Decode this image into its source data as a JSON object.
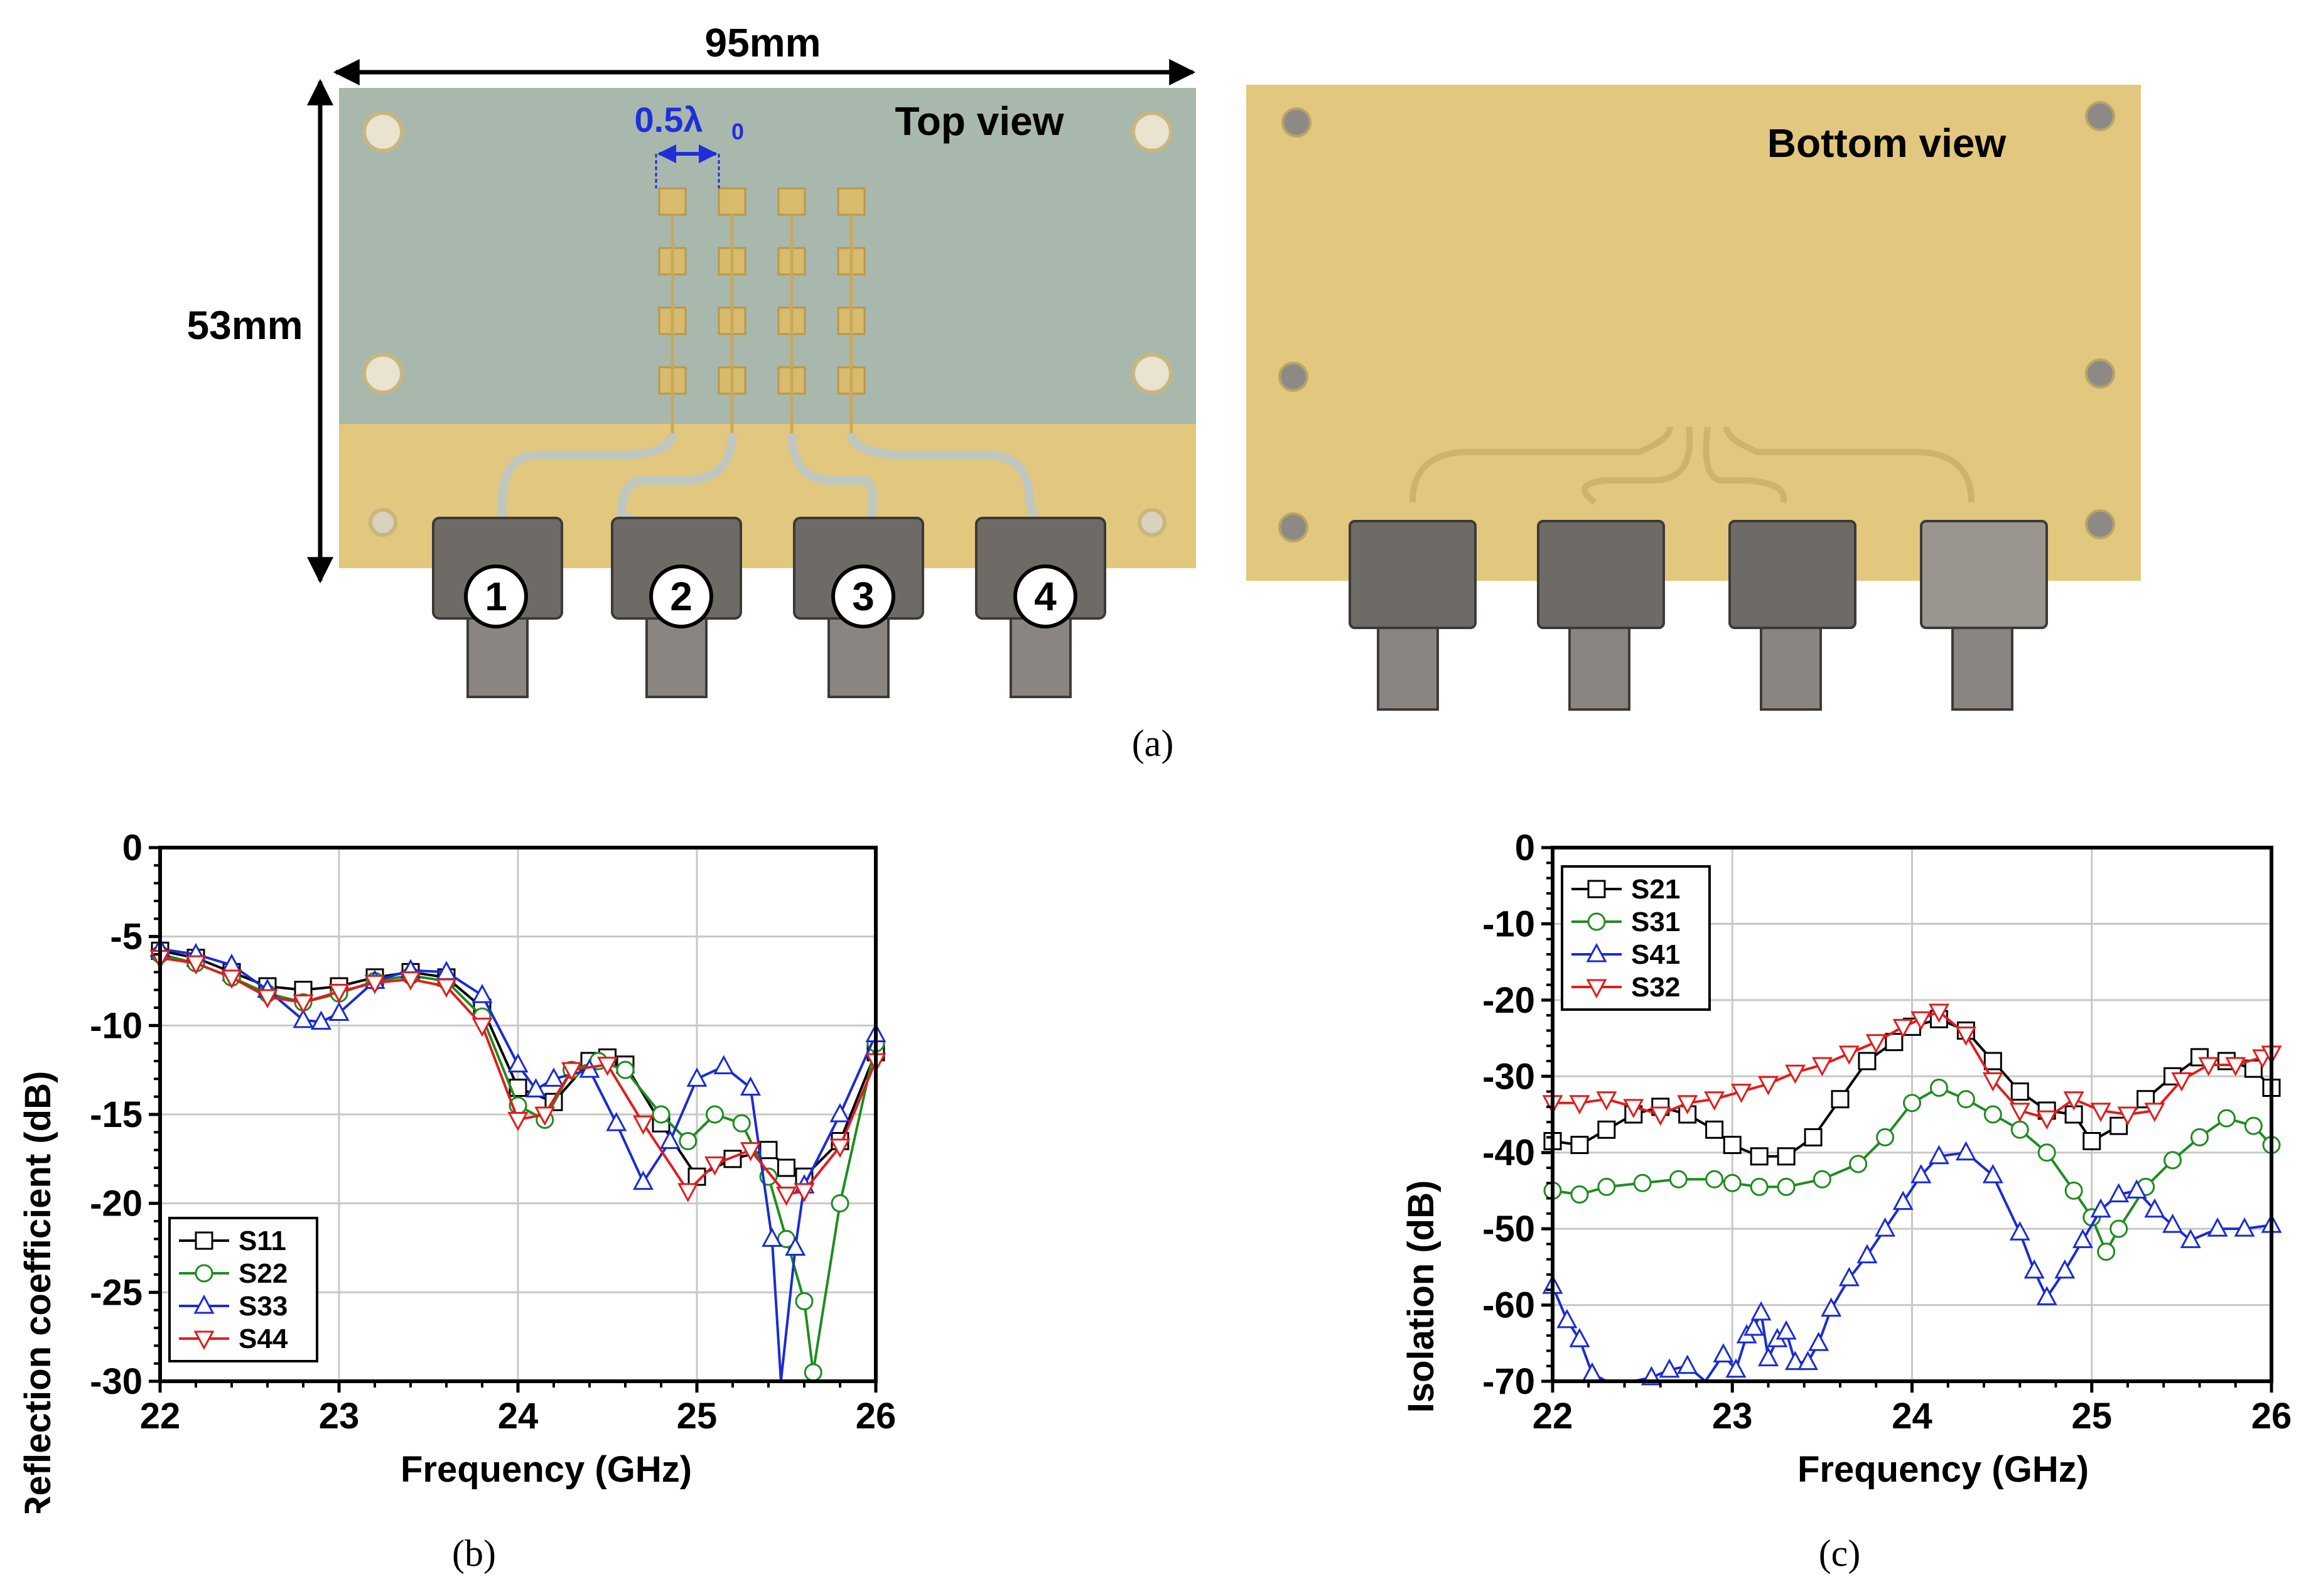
{
  "photo": {
    "width_label": "95mm",
    "height_label": "53mm",
    "spacing_label": "0.5λ",
    "spacing_subscript": "0",
    "top_view_label": "Top view",
    "bottom_view_label": "Bottom view",
    "ports": [
      "1",
      "2",
      "3",
      "4"
    ],
    "colors": {
      "substrate": "#a9b8ad",
      "gold": "#e2c77e",
      "spacing": "#1f2fd8"
    }
  },
  "captions": {
    "a": "(a)",
    "b": "(b)",
    "c": "(c)"
  },
  "chart_data": [
    {
      "type": "line",
      "xlabel": "Frequency (GHz)",
      "ylabel": "Reflection coefficient (dB)",
      "xlim": [
        22,
        26
      ],
      "ylim": [
        -30,
        0
      ],
      "xticks": [
        22,
        23,
        24,
        25,
        26
      ],
      "yticks": [
        0,
        -5,
        -10,
        -15,
        -20,
        -25,
        -30
      ],
      "ytick_labels": [
        "0",
        "-5",
        "-10",
        "-15",
        "-20",
        "-25",
        "-30"
      ],
      "grid": true,
      "legend_position": "bottom-left",
      "series": [
        {
          "name": "S11",
          "color": "#000000",
          "marker": "square",
          "x": [
            22,
            22.2,
            22.4,
            22.6,
            22.8,
            23.0,
            23.2,
            23.4,
            23.6,
            23.8,
            24.0,
            24.2,
            24.4,
            24.5,
            24.6,
            24.8,
            25.0,
            25.2,
            25.4,
            25.5,
            25.6,
            25.8,
            26.0
          ],
          "y": [
            -5.8,
            -6.2,
            -7.0,
            -7.8,
            -8.0,
            -7.8,
            -7.3,
            -7.0,
            -7.3,
            -9.0,
            -13.5,
            -14.3,
            -12.0,
            -11.8,
            -12.2,
            -15.5,
            -18.5,
            -17.5,
            -17.0,
            -18.0,
            -18.5,
            -16.5,
            -11.5
          ]
        },
        {
          "name": "S22",
          "color": "#1e8c1e",
          "marker": "circle",
          "x": [
            22,
            22.2,
            22.4,
            22.6,
            22.8,
            23.0,
            23.2,
            23.4,
            23.6,
            23.8,
            24.0,
            24.15,
            24.3,
            24.45,
            24.6,
            24.8,
            24.95,
            25.1,
            25.25,
            25.4,
            25.5,
            25.6,
            25.65,
            25.8,
            26.0
          ],
          "y": [
            -6.0,
            -6.5,
            -7.3,
            -8.2,
            -8.7,
            -8.2,
            -7.5,
            -7.2,
            -7.5,
            -9.5,
            -14.5,
            -15.3,
            -12.5,
            -12.0,
            -12.5,
            -15.0,
            -16.5,
            -15.0,
            -15.5,
            -18.5,
            -22.0,
            -25.5,
            -29.5,
            -20.0,
            -11.0
          ]
        },
        {
          "name": "S33",
          "color": "#1a2bd4",
          "marker": "triangle-up",
          "x": [
            22,
            22.2,
            22.4,
            22.6,
            22.8,
            22.9,
            23.0,
            23.2,
            23.4,
            23.6,
            23.8,
            24.0,
            24.1,
            24.2,
            24.4,
            24.55,
            24.7,
            24.85,
            25.0,
            25.15,
            25.3,
            25.42,
            25.47,
            25.55,
            25.6,
            25.8,
            26.0
          ],
          "y": [
            -5.7,
            -6.0,
            -6.6,
            -8.0,
            -9.7,
            -9.8,
            -9.3,
            -7.5,
            -6.9,
            -7.0,
            -8.3,
            -12.2,
            -13.6,
            -13.0,
            -12.5,
            -15.5,
            -18.8,
            -16.5,
            -13.0,
            -12.3,
            -13.5,
            -22.0,
            -30.0,
            -22.5,
            -19.0,
            -15.0,
            -10.5
          ]
        },
        {
          "name": "S44",
          "color": "#e11c1c",
          "marker": "triangle-down",
          "x": [
            22,
            22.2,
            22.4,
            22.6,
            22.8,
            23.0,
            23.2,
            23.4,
            23.6,
            23.8,
            24.0,
            24.15,
            24.3,
            24.5,
            24.7,
            24.95,
            25.1,
            25.3,
            25.5,
            25.6,
            25.8,
            26.0
          ],
          "y": [
            -6.2,
            -6.5,
            -7.3,
            -8.4,
            -8.7,
            -8.1,
            -7.6,
            -7.4,
            -7.8,
            -10.0,
            -15.3,
            -15.0,
            -12.5,
            -12.2,
            -15.5,
            -19.3,
            -17.8,
            -17.0,
            -19.5,
            -19.3,
            -16.8,
            -12.0
          ]
        }
      ]
    },
    {
      "type": "line",
      "xlabel": "Frequency (GHz)",
      "ylabel": "Isolation (dB)",
      "xlim": [
        22,
        26
      ],
      "ylim": [
        -70,
        0
      ],
      "xticks": [
        22,
        23,
        24,
        25,
        26
      ],
      "yticks": [
        0,
        -10,
        -20,
        -30,
        -40,
        -50,
        -60,
        -70
      ],
      "ytick_labels": [
        "0",
        "-10",
        "-20",
        "-30",
        "-40",
        "-50",
        "-60",
        "-70"
      ],
      "grid": true,
      "legend_position": "top-left",
      "series": [
        {
          "name": "S21",
          "color": "#000000",
          "marker": "square",
          "x": [
            22,
            22.15,
            22.3,
            22.45,
            22.6,
            22.75,
            22.9,
            23.0,
            23.15,
            23.3,
            23.45,
            23.6,
            23.75,
            23.9,
            24.0,
            24.15,
            24.3,
            24.45,
            24.6,
            24.75,
            24.9,
            25.0,
            25.15,
            25.3,
            25.45,
            25.6,
            25.75,
            25.9,
            26.0
          ],
          "y": [
            -38.5,
            -39.0,
            -37.0,
            -35.0,
            -34.0,
            -35.0,
            -37.0,
            -39.0,
            -40.5,
            -40.5,
            -38.0,
            -33.0,
            -28.0,
            -25.5,
            -23.5,
            -22.5,
            -24.0,
            -28.0,
            -32.0,
            -34.5,
            -35.0,
            -38.5,
            -36.5,
            -33.0,
            -30.0,
            -27.5,
            -28.0,
            -29.0,
            -31.5
          ]
        },
        {
          "name": "S31",
          "color": "#1e8c1e",
          "marker": "circle",
          "x": [
            22,
            22.15,
            22.3,
            22.5,
            22.7,
            22.9,
            23.0,
            23.15,
            23.3,
            23.5,
            23.7,
            23.85,
            24.0,
            24.15,
            24.3,
            24.45,
            24.6,
            24.75,
            24.9,
            25.0,
            25.08,
            25.15,
            25.3,
            25.45,
            25.6,
            25.75,
            25.9,
            26.0
          ],
          "y": [
            -45.0,
            -45.5,
            -44.5,
            -44.0,
            -43.5,
            -43.5,
            -44.0,
            -44.5,
            -44.5,
            -43.5,
            -41.5,
            -38.0,
            -33.5,
            -31.5,
            -33.0,
            -35.0,
            -37.0,
            -40.0,
            -45.0,
            -48.5,
            -53.0,
            -50.0,
            -44.5,
            -41.0,
            -38.0,
            -35.5,
            -36.5,
            -39.0
          ]
        },
        {
          "name": "S41",
          "color": "#1a2bd4",
          "marker": "triangle-up",
          "x": [
            22,
            22.08,
            22.15,
            22.22,
            22.3,
            22.38,
            22.45,
            22.55,
            22.65,
            22.75,
            22.85,
            22.95,
            23.02,
            23.08,
            23.12,
            23.16,
            23.2,
            23.25,
            23.3,
            23.35,
            23.42,
            23.48,
            23.55,
            23.65,
            23.75,
            23.85,
            23.95,
            24.05,
            24.15,
            24.3,
            24.45,
            24.6,
            24.68,
            24.75,
            24.85,
            24.95,
            25.05,
            25.15,
            25.25,
            25.35,
            25.45,
            25.55,
            25.7,
            25.85,
            26.0
          ],
          "y": [
            -57.5,
            -62.0,
            -64.5,
            -69.0,
            -70.0,
            -70.0,
            -70.0,
            -69.5,
            -68.5,
            -68.0,
            -70.0,
            -66.5,
            -68.5,
            -64.0,
            -63.0,
            -61.0,
            -67.0,
            -64.5,
            -63.5,
            -67.5,
            -67.5,
            -65.0,
            -60.5,
            -56.5,
            -53.5,
            -50.0,
            -46.5,
            -43.0,
            -40.5,
            -40.0,
            -43.0,
            -50.5,
            -55.5,
            -59.0,
            -55.5,
            -51.5,
            -47.5,
            -45.5,
            -45.0,
            -47.5,
            -49.5,
            -51.5,
            -50.0,
            -50.0,
            -49.5
          ]
        },
        {
          "name": "S32",
          "color": "#e11c1c",
          "marker": "triangle-down",
          "x": [
            22,
            22.15,
            22.3,
            22.45,
            22.6,
            22.75,
            22.9,
            23.05,
            23.2,
            23.35,
            23.5,
            23.65,
            23.8,
            23.95,
            24.05,
            24.15,
            24.3,
            24.45,
            24.6,
            24.75,
            24.9,
            25.05,
            25.2,
            25.35,
            25.5,
            25.65,
            25.8,
            25.95,
            26.0
          ],
          "y": [
            -33.5,
            -33.5,
            -33.0,
            -34.0,
            -35.0,
            -33.5,
            -33.0,
            -32.0,
            -31.0,
            -29.5,
            -28.5,
            -27.0,
            -25.5,
            -23.5,
            -22.5,
            -21.5,
            -24.5,
            -30.5,
            -34.5,
            -35.5,
            -33.0,
            -34.5,
            -35.0,
            -34.5,
            -30.5,
            -28.5,
            -28.5,
            -27.5,
            -27.0
          ]
        }
      ]
    }
  ]
}
